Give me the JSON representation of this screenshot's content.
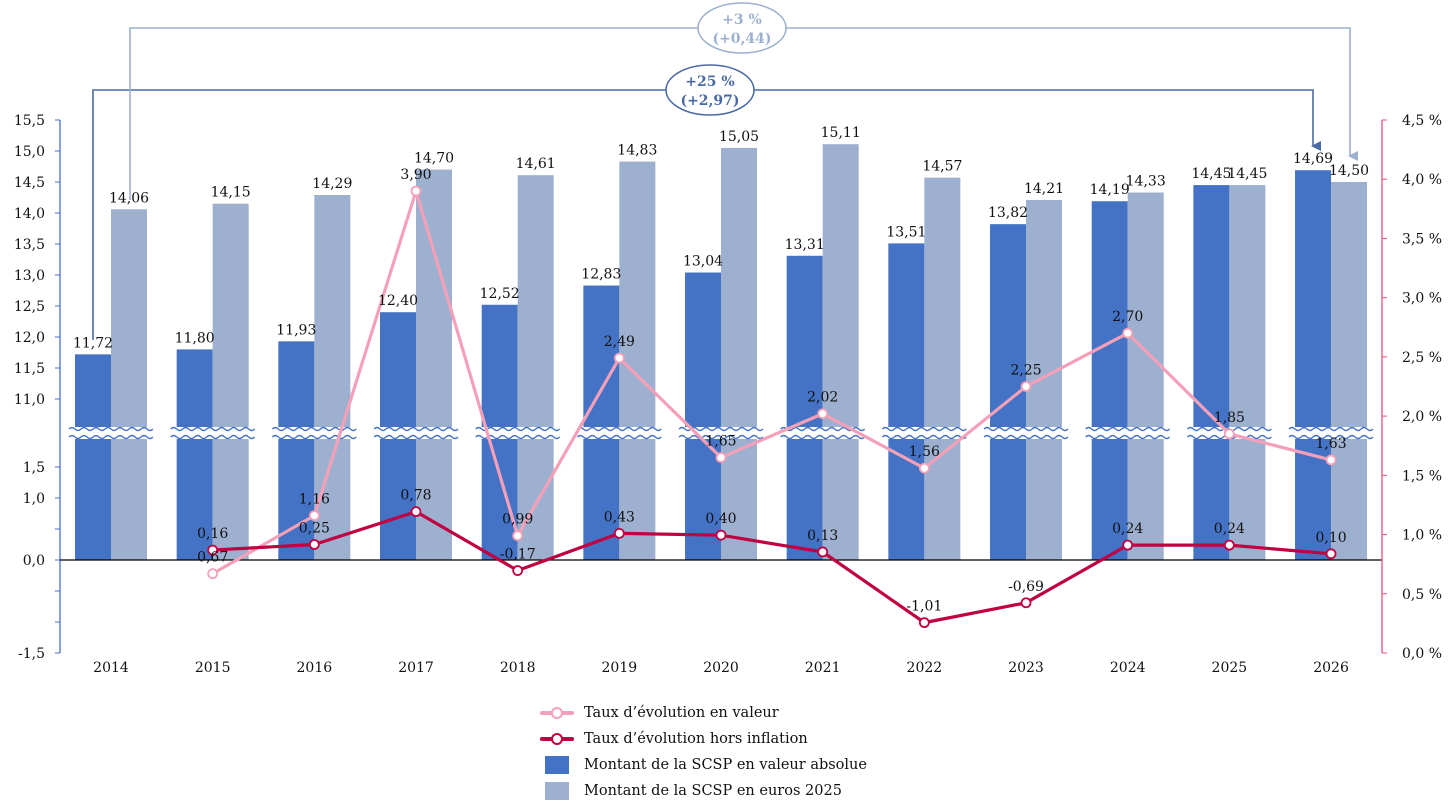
{
  "chart_data": {
    "type": "bar",
    "title": "",
    "categories": [
      "2014",
      "2015",
      "2016",
      "2017",
      "2018",
      "2019",
      "2020",
      "2021",
      "2022",
      "2023",
      "2024",
      "2025",
      "2026"
    ],
    "series": [
      {
        "name": "Montant de la SCSP en valeur absolue",
        "kind": "bar",
        "axis": "left",
        "color": "#4472C4",
        "values": [
          11.72,
          11.8,
          11.93,
          12.4,
          12.52,
          12.83,
          13.04,
          13.31,
          13.51,
          13.82,
          14.19,
          14.45,
          14.69
        ],
        "labels": [
          "11,72",
          "11,80",
          "11,93",
          "12,40",
          "12,52",
          "12,83",
          "13,04",
          "13,31",
          "13,51",
          "13,82",
          "14,19",
          "14,45",
          "14,69"
        ]
      },
      {
        "name": "Montant de la SCSP en euros 2025",
        "kind": "bar",
        "axis": "left",
        "color": "#9DB0CF",
        "values": [
          14.06,
          14.15,
          14.29,
          14.7,
          14.61,
          14.83,
          15.05,
          15.11,
          14.57,
          14.21,
          14.33,
          14.45,
          14.5
        ],
        "labels": [
          "14,06",
          "14,15",
          "14,29",
          "14,70",
          "14,61",
          "14,83",
          "15,05",
          "15,11",
          "14,57",
          "14,21",
          "14,33",
          "14,45",
          "14,50"
        ]
      },
      {
        "name": "Taux d’évolution en valeur",
        "kind": "line",
        "axis": "right",
        "color": "#F4A0B8",
        "values": [
          null,
          0.67,
          1.16,
          3.9,
          0.99,
          2.49,
          1.65,
          2.02,
          1.56,
          2.25,
          2.7,
          1.85,
          1.63
        ],
        "labels": [
          "",
          "0,67",
          "1,16",
          "3,90",
          "0,99",
          "2,49",
          "1,65",
          "2,02",
          "1,56",
          "2,25",
          "2,70",
          "1,85",
          "1,63"
        ]
      },
      {
        "name": "Taux d’évolution hors inflation",
        "kind": "line",
        "axis": "left",
        "color": "#C00040",
        "values": [
          null,
          0.16,
          0.25,
          0.78,
          -0.17,
          0.43,
          0.4,
          0.13,
          -1.01,
          -0.69,
          0.24,
          0.24,
          0.1
        ],
        "labels": [
          "",
          "0,16",
          "0,25",
          "0,78",
          "-0,17",
          "0,43",
          "0,40",
          "0,13",
          "-1,01",
          "-0,69",
          "0,24",
          "0,24",
          "0,10"
        ]
      }
    ],
    "left_axis": {
      "broken": true,
      "upper_range": [
        11.0,
        15.5
      ],
      "lower_range": [
        -1.5,
        1.5
      ],
      "upper_ticks": [
        "11,0",
        "11,5",
        "12,0",
        "12,5",
        "13,0",
        "13,5",
        "14,0",
        "14,5",
        "15,0",
        "15,5"
      ],
      "lower_ticks": [
        "1,5",
        "1,0",
        "",
        "0,0",
        "",
        "",
        "-1,5"
      ]
    },
    "right_axis": {
      "range": [
        0,
        4.5
      ],
      "ticks": [
        "0,0 %",
        "0,5 %",
        "1,0 %",
        "1,5 %",
        "2,0 %",
        "2,5 %",
        "3,0 %",
        "3,5 %",
        "4,0 %",
        "4,5 %"
      ],
      "color": "#E8507A"
    },
    "annotations": [
      {
        "line1": "+25 %",
        "line2": "(+2,97)",
        "from": "2014",
        "to": "2026",
        "series": "Montant de la SCSP en valeur absolue",
        "color": "#4A6AA5"
      },
      {
        "line1": "+3 %",
        "line2": "(+0,44)",
        "from": "2014",
        "to": "2026",
        "series": "Montant de la SCSP en euros 2025",
        "color": "#9DB0CF"
      }
    ],
    "legend": {
      "position": "bottom",
      "items": [
        "Taux d’évolution en valeur",
        "Taux d’évolution hors inflation",
        "Montant de la SCSP en valeur absolue",
        "Montant de la SCSP en euros 2025"
      ]
    },
    "grid": false
  }
}
